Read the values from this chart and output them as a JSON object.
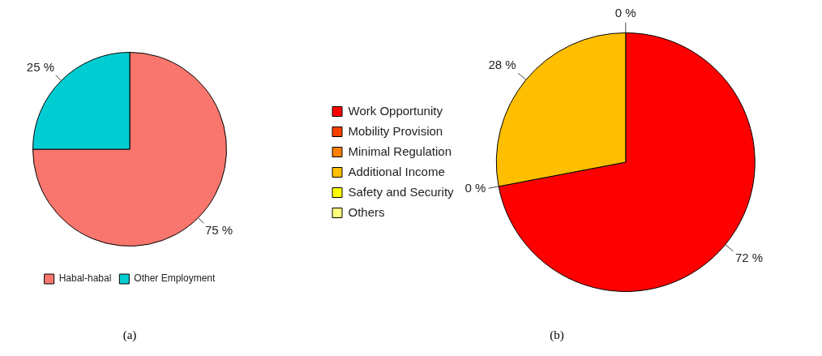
{
  "chart_data": [
    {
      "type": "pie",
      "categories": [
        "Habal-habal",
        "Other Employment"
      ],
      "values": [
        75,
        25
      ],
      "colors": [
        "#f8766d",
        "#00cdd1"
      ],
      "value_labels": [
        "75 %",
        "25 %"
      ],
      "legend": "bottom",
      "annotations": [
        "(a)"
      ]
    },
    {
      "type": "pie",
      "categories": [
        "Work Opportunity",
        "Mobility Provision",
        "Minimal Regulation",
        "Additional Income",
        "Safety and Security",
        "Others"
      ],
      "values": [
        72,
        0,
        0,
        28,
        0,
        0
      ],
      "colors": [
        "#ff0000",
        "#ff4000",
        "#ff8000",
        "#ffbf00",
        "#ffff00",
        "#ffff80"
      ],
      "value_labels": [
        "72 %",
        "0 %",
        null,
        "28 %",
        "0 %",
        null
      ],
      "legend": "left",
      "annotations": [
        "(b)"
      ]
    }
  ]
}
